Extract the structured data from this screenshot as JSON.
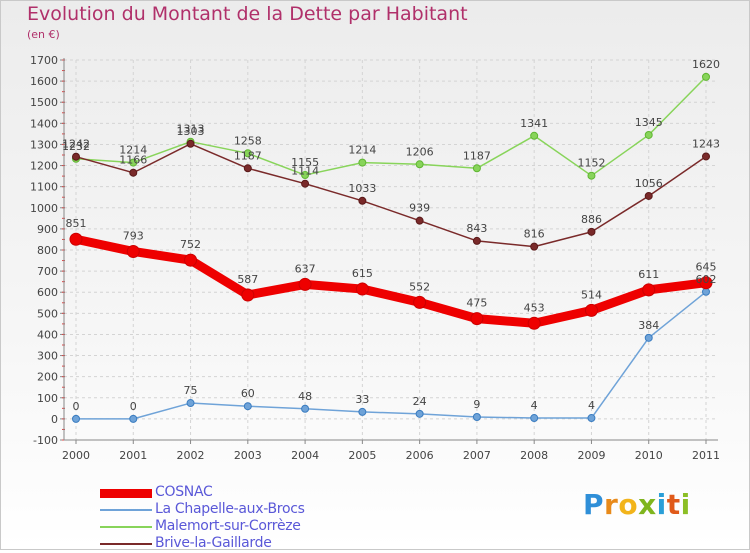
{
  "title": "Evolution du Montant de la Dette par Habitant",
  "unit": "(en €)",
  "logo_text": "Proxiti",
  "chart_data": {
    "type": "line",
    "title": "Evolution du Montant de la Dette par Habitant",
    "ylabel": "(en €)",
    "x": [
      "2000",
      "2001",
      "2002",
      "2003",
      "2004",
      "2005",
      "2006",
      "2007",
      "2008",
      "2009",
      "2010",
      "2011"
    ],
    "ylim": [
      -100,
      1700
    ],
    "yticks": [
      -100,
      0,
      100,
      200,
      300,
      400,
      500,
      600,
      700,
      800,
      900,
      1000,
      1100,
      1200,
      1300,
      1400,
      1500,
      1600,
      1700
    ],
    "grid": true,
    "legend_position": "bottom-left",
    "series": [
      {
        "name": "COSNAC",
        "color": "#ee0000",
        "values": [
          851,
          793,
          752,
          587,
          637,
          615,
          552,
          475,
          453,
          514,
          611,
          645
        ]
      },
      {
        "name": "La Chapelle-aux-Brocs",
        "color": "#6fa3d8",
        "values": [
          0,
          0,
          75,
          60,
          48,
          33,
          24,
          9,
          4,
          4,
          384,
          602
        ]
      },
      {
        "name": "Malemort-sur-Corrèze",
        "color": "#88d45a",
        "values": [
          1232,
          1214,
          1313,
          1258,
          1155,
          1214,
          1206,
          1187,
          1341,
          1152,
          1345,
          1620
        ]
      },
      {
        "name": "Brive-la-Gaillarde",
        "color": "#7a2a2a",
        "values": [
          1242,
          1166,
          1303,
          1187,
          1114,
          1033,
          939,
          843,
          816,
          886,
          1056,
          1243
        ]
      }
    ]
  }
}
